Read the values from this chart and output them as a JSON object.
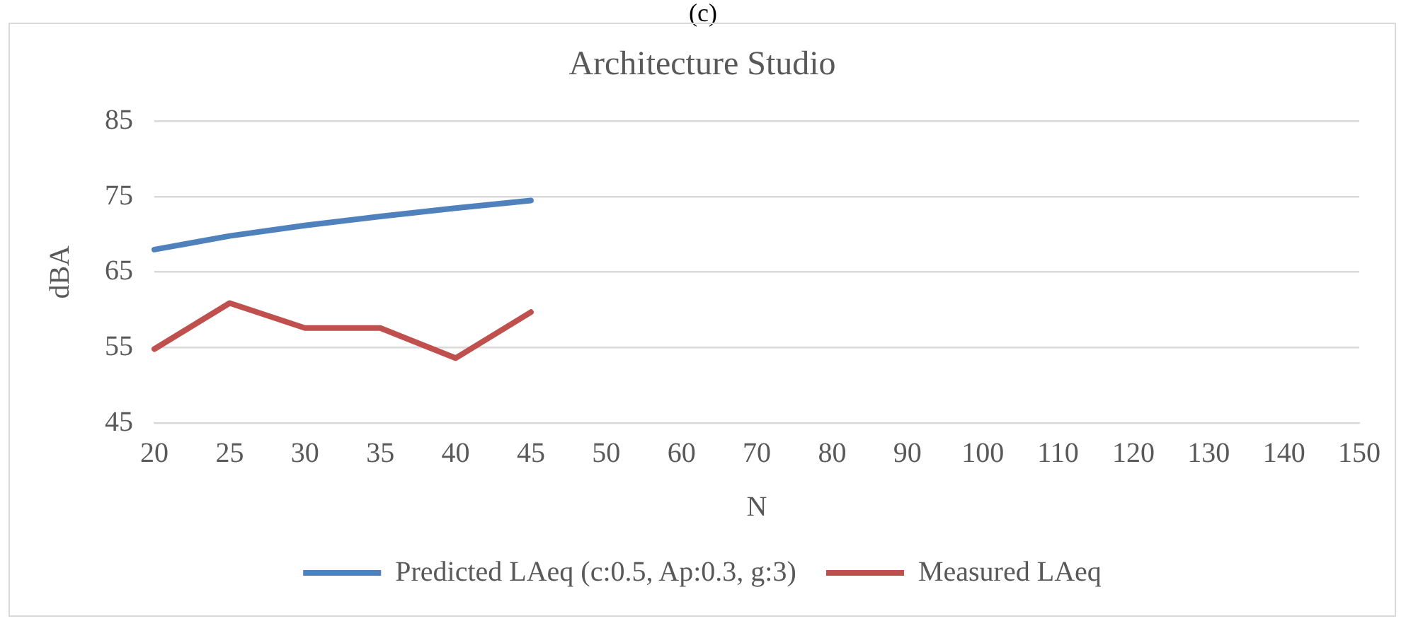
{
  "chart_data": {
    "type": "line",
    "title": "Architecture Studio",
    "xlabel": "N",
    "ylabel": "dBA",
    "annotations": [
      "(c)"
    ],
    "categories": [
      "20",
      "25",
      "30",
      "35",
      "40",
      "45",
      "50",
      "60",
      "70",
      "80",
      "90",
      "100",
      "110",
      "120",
      "130",
      "140",
      "150"
    ],
    "series": [
      {
        "name": "Predicted LAeq (c:0.5, Ap:0.3, g:3)",
        "color": "#4f81bd",
        "values": [
          68,
          69.8,
          71.2,
          72.4,
          73.5,
          74.5,
          null,
          null,
          null,
          null,
          null,
          null,
          null,
          null,
          null,
          null,
          null
        ]
      },
      {
        "name": "Measured LAeq",
        "color": "#c0504d",
        "values": [
          54.8,
          60.9,
          57.6,
          57.6,
          53.6,
          59.7,
          null,
          null,
          null,
          null,
          null,
          null,
          null,
          null,
          null,
          null,
          null
        ]
      }
    ],
    "ylim": [
      45,
      85
    ],
    "yticks": [
      45,
      55,
      65,
      75,
      85
    ],
    "grid": "y",
    "legend": "bottom",
    "marker": "none",
    "line_style": "solid"
  }
}
